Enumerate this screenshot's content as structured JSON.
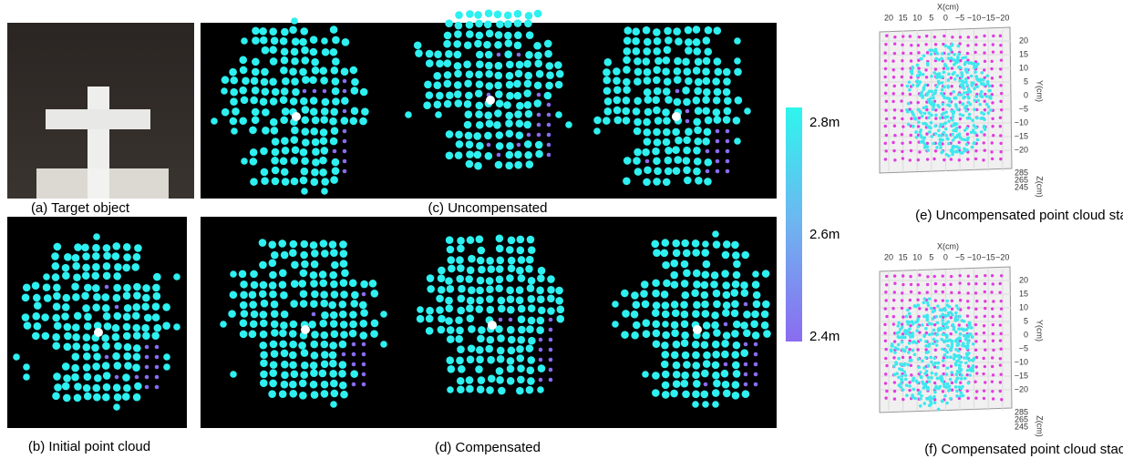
{
  "captions": {
    "a": "(a) Target object",
    "b": "(b) Initial point cloud",
    "c": "(c) Uncompensated",
    "d": "(d) Compensated",
    "e": "(e) Uncompensated point cloud stack",
    "f": "(f) Compensated point cloud stack"
  },
  "colorbar": {
    "labels": [
      "2.8m",
      "2.6m",
      "2.4m"
    ]
  },
  "stacks": [
    {
      "x_label": "X(cm)",
      "x_ticks": [
        "20",
        "15",
        "10",
        "5",
        "0",
        "−5",
        "−10",
        "−15",
        "−20"
      ],
      "y_label": "Y(cm)",
      "y_ticks": [
        "20",
        "15",
        "10",
        "5",
        "0",
        "−5",
        "−10",
        "−15",
        "−20"
      ],
      "z_label": "Z(cm)",
      "z_ticks": [
        "285",
        "265",
        "245"
      ]
    },
    {
      "x_label": "X(cm)",
      "x_ticks": [
        "20",
        "15",
        "10",
        "5",
        "0",
        "−5",
        "−10",
        "−15",
        "−20"
      ],
      "y_label": "Y(cm)",
      "y_ticks": [
        "20",
        "15",
        "10",
        "5",
        "0",
        "−5",
        "−10",
        "−15",
        "−20"
      ],
      "z_label": "Z(cm)",
      "z_ticks": [
        "285",
        "265",
        "245"
      ]
    }
  ]
}
